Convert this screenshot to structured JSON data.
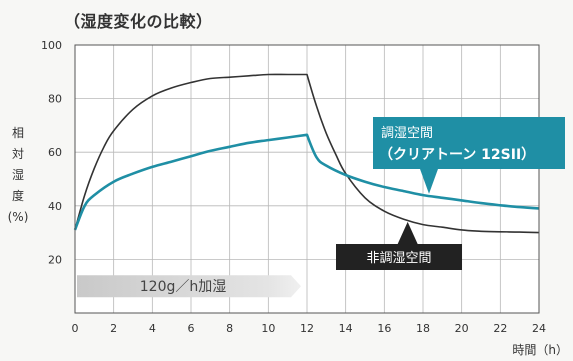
{
  "chart_data": {
    "type": "line",
    "title": "（湿度変化の比較）",
    "xlabel": "時間（h）",
    "ylabel": "相対湿度（%）",
    "ylabel_chars": [
      "相",
      "対",
      "湿",
      "度",
      "(%)"
    ],
    "xlim": [
      0,
      24
    ],
    "ylim": [
      0,
      100
    ],
    "x_ticks": [
      0,
      2,
      4,
      6,
      8,
      10,
      12,
      14,
      16,
      18,
      20,
      22,
      24
    ],
    "y_ticks": [
      20,
      40,
      60,
      80,
      100
    ],
    "grid": {
      "x": true,
      "y": true
    },
    "series": [
      {
        "name": "非調湿空間",
        "color": "#333333",
        "x": [
          0,
          0.5,
          1,
          1.5,
          2,
          3,
          4,
          5,
          6,
          7,
          8,
          9,
          10,
          11,
          12,
          12.5,
          13,
          13.5,
          14,
          15,
          16,
          17,
          18,
          19,
          20,
          21,
          22,
          23,
          24
        ],
        "y": [
          31,
          44,
          54,
          62,
          68,
          76,
          81,
          84,
          86,
          87.5,
          88,
          88.5,
          89,
          89,
          89,
          77,
          67,
          59,
          52,
          43,
          38,
          35,
          33,
          32,
          31,
          30.5,
          30.3,
          30.2,
          30
        ]
      },
      {
        "name": "調湿空間（クリアトーン 12SII）",
        "color": "#1f8fa5",
        "x": [
          0,
          0.5,
          1,
          2,
          3,
          4,
          5,
          6,
          7,
          8,
          9,
          10,
          11,
          12,
          12.5,
          13,
          14,
          15,
          16,
          17,
          18,
          19,
          20,
          21,
          22,
          23,
          24
        ],
        "y": [
          31,
          40,
          44,
          49,
          52,
          54.5,
          56.5,
          58.5,
          60.5,
          62,
          63.5,
          64.5,
          65.5,
          66.5,
          58,
          55,
          51.5,
          49,
          47,
          45.5,
          44,
          43,
          42,
          41,
          40.2,
          39.5,
          39
        ]
      }
    ],
    "humidifying_band": {
      "label": "120g／h加湿",
      "x_start": 0,
      "x_end": 12,
      "y_center": 10
    },
    "annotations": [
      {
        "text_lines": [
          "調湿空間",
          "（クリアトーン 12SII）"
        ],
        "box_color": "#1f8fa5",
        "text_color": "#ffffff",
        "points_to": {
          "x": 18,
          "y": 44.5
        }
      },
      {
        "text_lines": [
          "非調湿空間"
        ],
        "box_color": "#222222",
        "text_color": "#ffffff",
        "points_to": {
          "x": 17,
          "y": 34
        }
      }
    ]
  }
}
